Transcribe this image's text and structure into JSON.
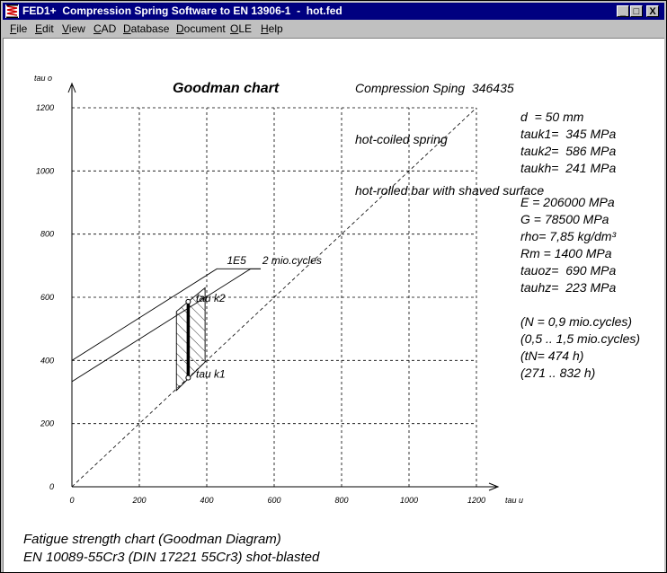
{
  "window": {
    "title": "FED1+  Compression Spring Software to EN 13906-1  -  hot.fed",
    "buttons": [
      "_",
      "□",
      "X"
    ]
  },
  "menu": [
    {
      "label": "File",
      "ul": "F",
      "rest": "ile"
    },
    {
      "label": "Edit",
      "ul": "E",
      "rest": "dit"
    },
    {
      "label": "View",
      "ul": "V",
      "rest": "iew"
    },
    {
      "label": "CAD",
      "ul": "C",
      "rest": "AD"
    },
    {
      "label": "Database",
      "ul": "D",
      "rest": "atabase"
    },
    {
      "label": "Document",
      "ul": "D",
      "rest": "ocument"
    },
    {
      "label": "OLE",
      "ul": "O",
      "rest": "LE"
    },
    {
      "label": "Help",
      "ul": "H",
      "rest": "elp"
    }
  ],
  "header": {
    "line1": "Compression Sping  346435",
    "line2": "hot-coiled spring",
    "line3": "hot-rolled bar with shaved surface"
  },
  "properties": [
    "d  = 50 mm",
    "tauk1=  345 MPa",
    "tauk2=  586 MPa",
    "taukh=  241 MPa",
    "",
    "E = 206000 MPa",
    "G = 78500 MPa",
    "rho= 7,85 kg/dm³",
    "Rm = 1400 MPa",
    "tauoz=  690 MPa",
    "tauhz=  223 MPa",
    "",
    "(N = 0,9 mio.cycles)",
    "(0,5 .. 1,5 mio.cycles)",
    "(tN= 474 h)",
    "(271 .. 832 h)"
  ],
  "footer": {
    "line1": "Fatigue strength chart (Goodman Diagram)",
    "line2": "EN 10089-55Cr3 (DIN 17221 55Cr3) shot-blasted"
  },
  "chart_data": {
    "type": "line",
    "title": "Goodman chart",
    "xlabel": "tau u",
    "ylabel": "tau o",
    "xlim": [
      0,
      1200
    ],
    "ylim": [
      0,
      1200
    ],
    "xticks": [
      0,
      200,
      400,
      600,
      800,
      1000,
      1200
    ],
    "yticks": [
      0,
      200,
      400,
      600,
      800,
      1000,
      1200
    ],
    "grid": true,
    "series": [
      {
        "name": "1E5",
        "points": [
          [
            0,
            400
          ],
          [
            430,
            690
          ],
          [
            560,
            690
          ]
        ]
      },
      {
        "name": "2 mio.cycles",
        "points": [
          [
            0,
            333
          ],
          [
            530,
            690
          ],
          [
            560,
            690
          ]
        ]
      }
    ],
    "diagonal": [
      [
        0,
        0
      ],
      [
        1200,
        1200
      ]
    ],
    "operating_range": {
      "polygon": [
        [
          310,
          305
        ],
        [
          310,
          555
        ],
        [
          395,
          630
        ],
        [
          395,
          395
        ]
      ]
    },
    "operating_line": {
      "x": 345,
      "y_low": 345,
      "y_high": 586
    },
    "annotations": [
      {
        "text": "1E5",
        "x": 460,
        "y": 705
      },
      {
        "text": "2 mio.cycles",
        "x": 565,
        "y": 705
      },
      {
        "text": "tau k2",
        "x": 368,
        "y": 586
      },
      {
        "text": "tau k1",
        "x": 368,
        "y": 345
      }
    ]
  }
}
